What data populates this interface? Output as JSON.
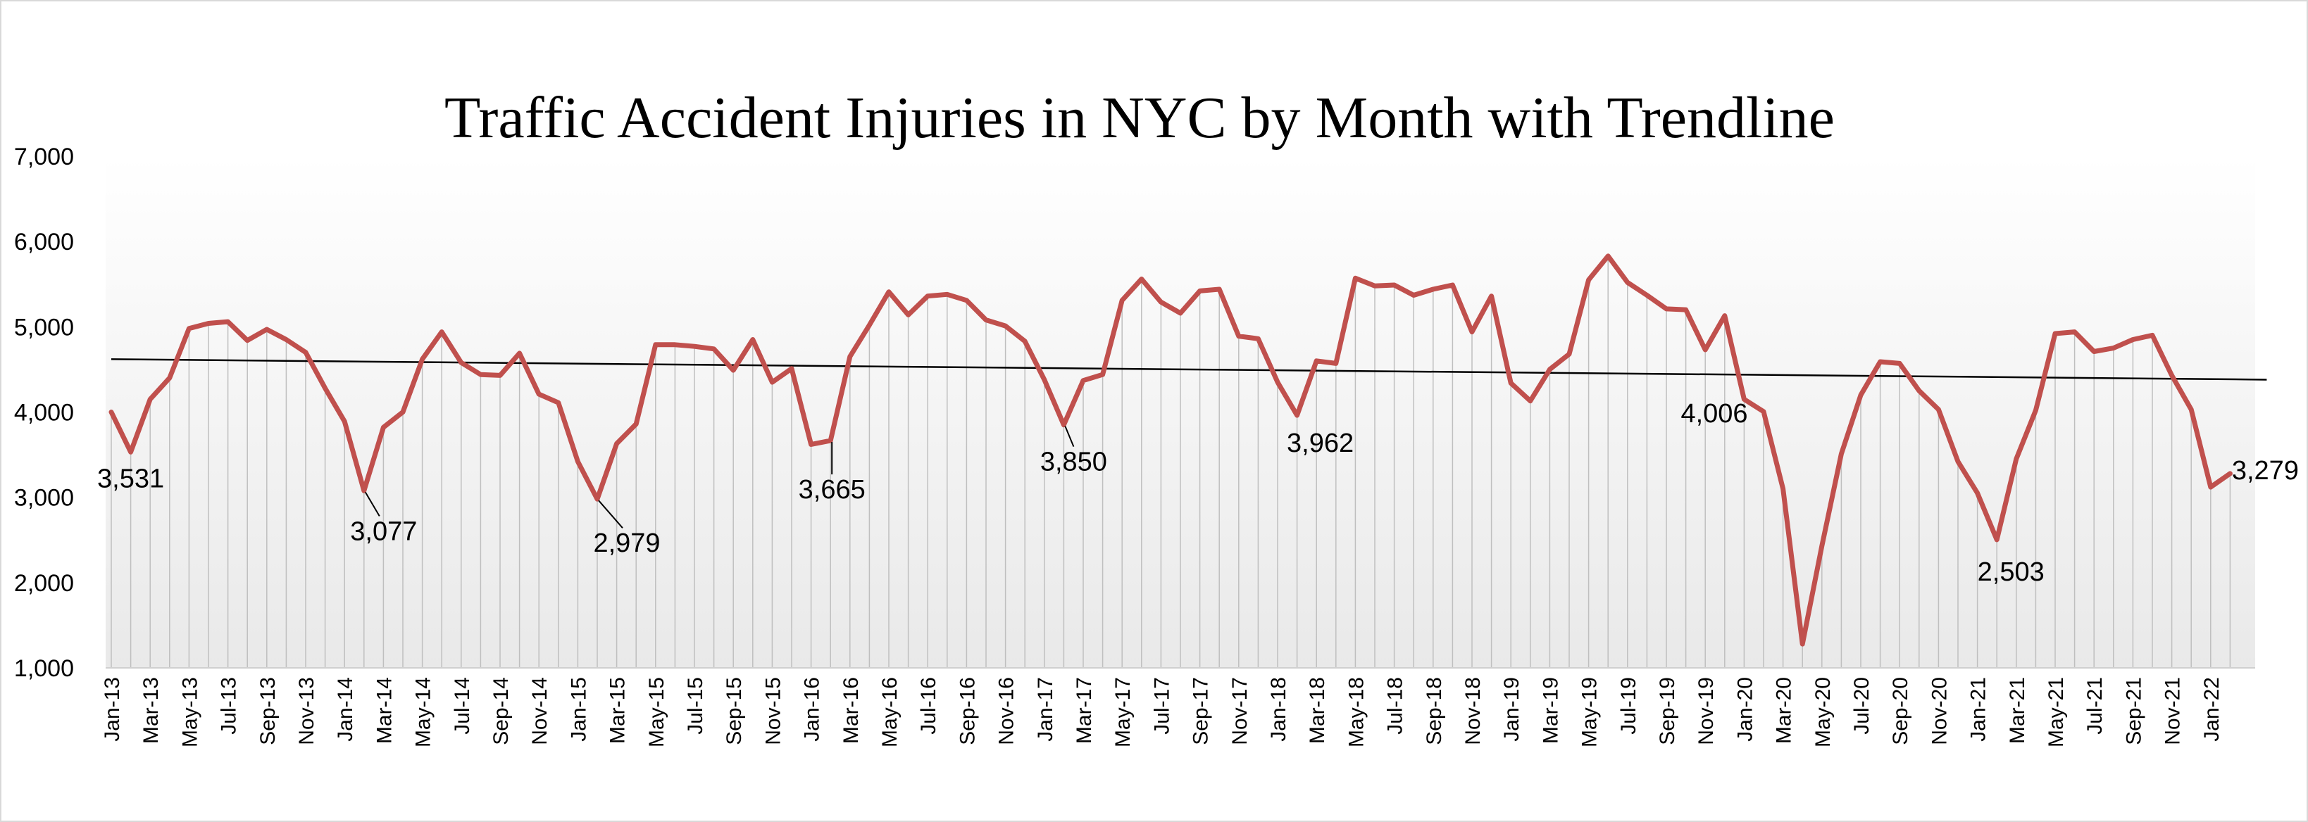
{
  "chart_data": {
    "type": "line",
    "title": "Traffic Accident Injuries in NYC  by Month with  Trendline",
    "xlabel": "",
    "ylabel": "",
    "ylim": [
      1000,
      7000
    ],
    "yticks": [
      "1,000",
      "2,000",
      "3,000",
      "4,000",
      "5,000",
      "6,000",
      "7,000"
    ],
    "ytick_values": [
      1000,
      2000,
      3000,
      4000,
      5000,
      6000,
      7000
    ],
    "x_tick_labels": [
      "Jan-13",
      "Mar-13",
      "May-13",
      "Jul-13",
      "Sep-13",
      "Nov-13",
      "Jan-14",
      "Mar-14",
      "May-14",
      "Jul-14",
      "Sep-14",
      "Nov-14",
      "Jan-15",
      "Mar-15",
      "May-15",
      "Jul-15",
      "Sep-15",
      "Nov-15",
      "Jan-16",
      "Mar-16",
      "May-16",
      "Jul-16",
      "Sep-16",
      "Nov-16",
      "Jan-17",
      "Mar-17",
      "May-17",
      "Jul-17",
      "Sep-17",
      "Nov-17",
      "Jan-18",
      "Mar-18",
      "May-18",
      "Jul-18",
      "Sep-18",
      "Nov-18",
      "Jan-19",
      "Mar-19",
      "May-19",
      "Jul-19",
      "Sep-19",
      "Nov-19",
      "Jan-20",
      "Mar-20",
      "May-20",
      "Jul-20",
      "Sep-20",
      "Nov-20",
      "Jan-21",
      "Mar-21",
      "May-21",
      "Jul-21",
      "Sep-21",
      "Nov-21",
      "Jan-22"
    ],
    "grid": "vertical drop lines per month",
    "legend": "none",
    "colors": {
      "series": "#c0504d",
      "trendline": "#000000",
      "droplines": "#bfbfbf",
      "plot_bg_top": "#ffffff",
      "plot_bg_bottom": "#ebebeb"
    },
    "series": [
      {
        "start": "Jan-13",
        "values": [
          4000,
          3531,
          4150,
          4400,
          4980,
          5040,
          5060,
          4840,
          4970,
          4850,
          4700,
          4280,
          3890,
          3077,
          3820,
          4000,
          4620,
          4940,
          4580,
          4440,
          4430,
          4690,
          4210,
          4110,
          3420,
          2979,
          3630,
          3860,
          4790,
          4790,
          4770,
          4740,
          4490,
          4850,
          4350,
          4510,
          3620,
          3665,
          4650,
          5020,
          5410,
          5140,
          5360,
          5380,
          5310,
          5080,
          5010,
          4830,
          4380,
          3850,
          4370,
          4440,
          5310,
          5560,
          5290,
          5160,
          5420,
          5440,
          4890,
          4860,
          4350,
          3962,
          4600,
          4570,
          5570,
          5480,
          5490,
          5370,
          5440,
          5490,
          4940,
          5360,
          4340,
          4130,
          4500,
          4680,
          5550,
          5830,
          5520,
          5370,
          5210,
          5200,
          4730,
          5130,
          4150,
          4006,
          3100,
          1280,
          2430,
          3510,
          4200,
          4590,
          4570,
          4250,
          4030,
          3420,
          3050,
          2503,
          3450,
          4020,
          4920,
          4940,
          4710,
          4750,
          4850,
          4900,
          4430,
          4030,
          3120,
          3279
        ]
      }
    ],
    "trendline": {
      "start_value": 4620,
      "end_value": 4380
    },
    "data_labels": [
      {
        "label": "3,531",
        "index": 1
      },
      {
        "label": "3,077",
        "index": 13
      },
      {
        "label": "2,979",
        "index": 25
      },
      {
        "label": "3,665",
        "index": 37
      },
      {
        "label": "3,850",
        "index": 49
      },
      {
        "label": "3,962",
        "index": 61
      },
      {
        "label": "4,006",
        "index": 85
      },
      {
        "label": "2,503",
        "index": 97
      },
      {
        "label": "3,279",
        "index": 109
      }
    ]
  }
}
